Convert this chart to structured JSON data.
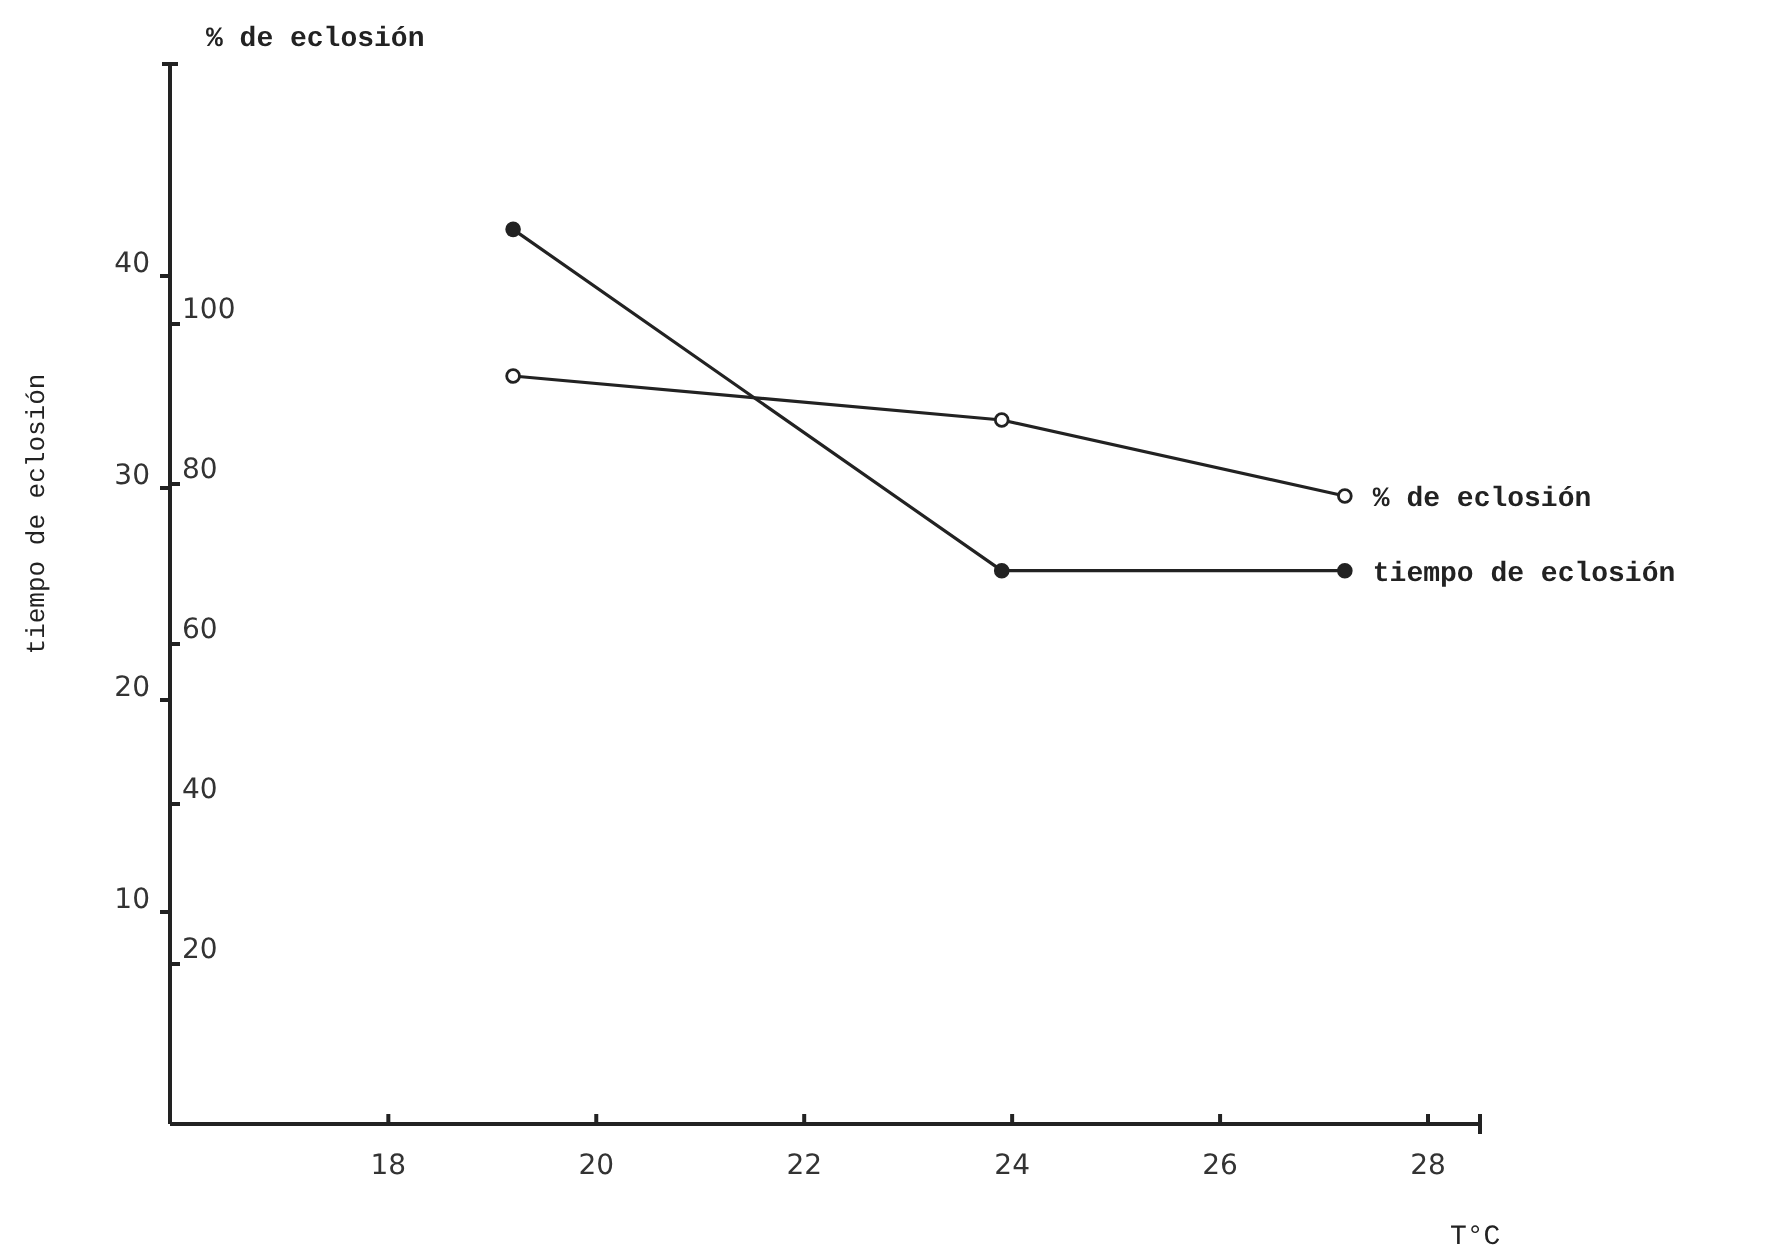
{
  "chart_data": {
    "type": "line",
    "xlabel": "T°C",
    "ylabel": "tiempo de eclosión",
    "y2label": "% de eclosión",
    "x": [
      19.2,
      23.9,
      27.2
    ],
    "series": [
      {
        "name": "tiempo de eclosión",
        "color": "#222222",
        "values": [
          42.2,
          26.1,
          26.1
        ]
      },
      {
        "name": "% de eclosión",
        "color": "#222222",
        "values": [
          93.5,
          88,
          78.5
        ],
        "axis": "y2"
      }
    ],
    "xlim": [
      15.9,
      28.5
    ],
    "xticks": [
      18,
      20,
      22,
      24,
      26,
      28
    ],
    "ylim": [
      0,
      50
    ],
    "yticks": [
      10,
      20,
      30,
      40
    ],
    "y2lim": [
      0,
      132.5
    ],
    "y2ticks": [
      20,
      40,
      60,
      80,
      100
    ],
    "marker": "circle",
    "line_style": "solid",
    "legend": false,
    "grid": false
  }
}
